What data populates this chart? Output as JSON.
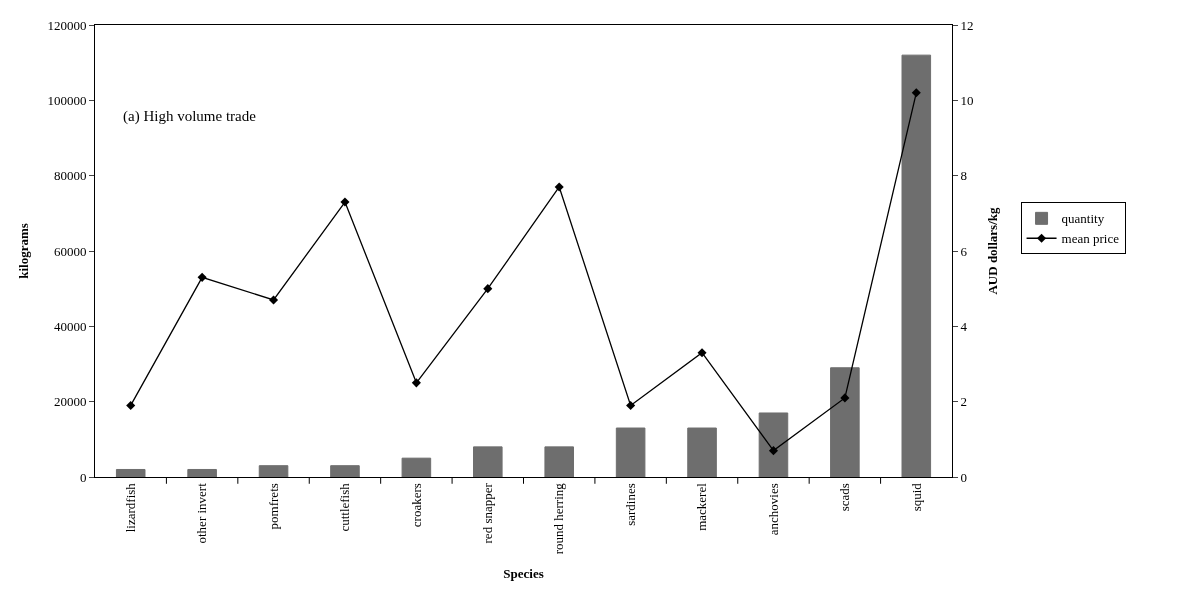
{
  "chart_data": {
    "type": "bar",
    "xlabel": "Species",
    "ylabel": "kilograms",
    "y2label": "AUD dollars/kg",
    "annotations": [
      "(a) High volume trade"
    ],
    "categories": [
      "lizardfish",
      "other invert",
      "pomfrets",
      "cuttlefish",
      "croakers",
      "red snapper",
      "round herring",
      "sardines",
      "mackerel",
      "anchovies",
      "scads",
      "squid"
    ],
    "series": [
      {
        "name": "quantity",
        "color": "#6e6e6e",
        "values": [
          2000,
          2000,
          3000,
          3000,
          5000,
          8000,
          8000,
          13000,
          13000,
          17000,
          29000,
          112000
        ]
      },
      {
        "name": "mean price",
        "type": "line",
        "axis": "y2",
        "color": "#000000",
        "marker": "diamond",
        "line_style": "solid",
        "values": [
          1.9,
          5.3,
          4.7,
          7.3,
          2.5,
          5.0,
          7.7,
          1.9,
          3.3,
          0.7,
          2.1,
          10.2
        ]
      }
    ],
    "ylim": [
      0,
      120000
    ],
    "yticks": [
      0,
      20000,
      40000,
      60000,
      80000,
      100000,
      120000
    ],
    "y2lim": [
      0,
      12
    ],
    "y2ticks": [
      0,
      2,
      4,
      6,
      8,
      10,
      12
    ],
    "legend": "right"
  }
}
